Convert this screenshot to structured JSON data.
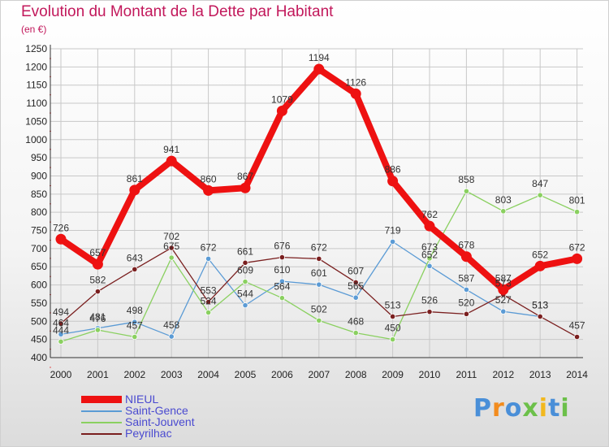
{
  "chart_data": {
    "type": "line",
    "title": "Evolution du Montant de la Dette par Habitant",
    "subtitle": "(en €)",
    "xlabel": "",
    "ylabel": "",
    "ylim": [
      400,
      1250
    ],
    "ytick_step": 50,
    "categories": [
      "2000",
      "2001",
      "2002",
      "2003",
      "2004",
      "2005",
      "2006",
      "2007",
      "2008",
      "2009",
      "2010",
      "2011",
      "2012",
      "2013",
      "2014"
    ],
    "series": [
      {
        "name": "NIEUL",
        "color": "#ee1111",
        "values": [
          726,
          657,
          861,
          941,
          860,
          867,
          1079,
          1194,
          1126,
          886,
          762,
          678,
          587,
          652,
          672
        ]
      },
      {
        "name": "Saint-Gence",
        "color": "#5b9bd5",
        "values": [
          464,
          481,
          498,
          458,
          672,
          544,
          610,
          601,
          565,
          719,
          652,
          587,
          527,
          513,
          null
        ]
      },
      {
        "name": "Saint-Jouvent",
        "color": "#8ad060",
        "values": [
          444,
          476,
          457,
          675,
          524,
          609,
          564,
          502,
          468,
          450,
          673,
          858,
          803,
          847,
          801
        ]
      },
      {
        "name": "Peyrilhac",
        "color": "#7a1f1f",
        "values": [
          494,
          582,
          643,
          702,
          553,
          661,
          676,
          672,
          607,
          513,
          526,
          520,
          573,
          513,
          457
        ]
      }
    ]
  },
  "legend": [
    "NIEUL",
    "Saint-Gence",
    "Saint-Jouvent",
    "Peyrilhac"
  ],
  "logo": {
    "text": "Proxiti",
    "letters": [
      "P",
      "r",
      "o",
      "x",
      "i",
      "t",
      "i"
    ],
    "colors": [
      "#4a8fd8",
      "#f28c1e",
      "#4a8fd8",
      "#6cc04a",
      "#f2b81e",
      "#4a8fd8",
      "#6cc04a"
    ]
  }
}
